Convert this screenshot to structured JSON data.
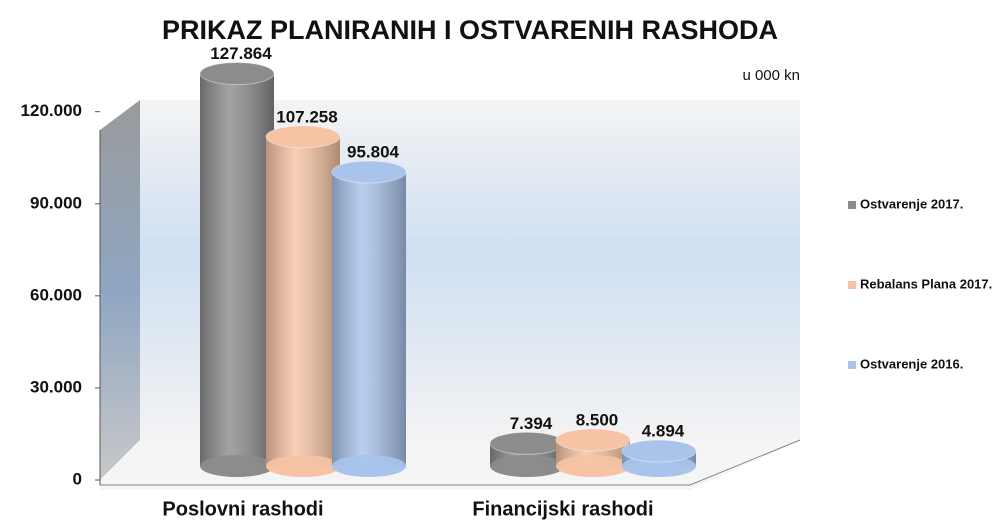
{
  "chart_data": {
    "type": "bar3d",
    "title": "PRIKAZ PLANIRANIH I OSTVARENIH RASHODA",
    "subtitle": "u 000 kn",
    "categories": [
      "Poslovni rashodi",
      "Financijski rashodi"
    ],
    "series": [
      {
        "name": "Ostvarenje 2017.",
        "color": "#8c8c8c",
        "values": [
          127864,
          7394
        ],
        "value_labels": [
          "127.864",
          "7.394"
        ]
      },
      {
        "name": "Rebalans Plana 2017.",
        "color": "#f6c3a4",
        "values": [
          107258,
          8500
        ],
        "value_labels": [
          "107.258",
          "8.500"
        ]
      },
      {
        "name": "Ostvarenje 2016.",
        "color": "#a9c3eb",
        "values": [
          95804,
          4894
        ],
        "value_labels": [
          "95.804",
          "4.894"
        ]
      }
    ],
    "ylim": [
      0,
      130000
    ],
    "yticks": [
      0,
      {
        "value": 30000,
        "label": "30.000"
      },
      {
        "value": 60000,
        "label": "60.000"
      },
      {
        "value": 90000,
        "label": "90.000"
      },
      {
        "value": 120000,
        "label": "120.000"
      }
    ],
    "legend": "right"
  }
}
